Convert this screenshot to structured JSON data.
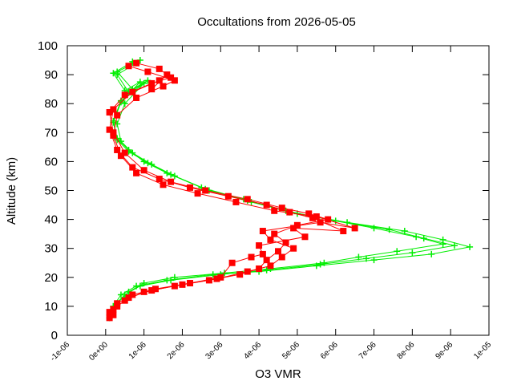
{
  "chart_data": {
    "type": "scatter",
    "title": "Occultations from 2026-05-05",
    "xlabel": "O3 VMR",
    "ylabel": "Altitude (km)",
    "xlim": [
      -1e-06,
      1e-05
    ],
    "ylim": [
      0,
      100
    ],
    "xticks": [
      "-1e-06",
      "0e+00",
      "1e-06",
      "2e-06",
      "3e-06",
      "4e-06",
      "5e-06",
      "6e-06",
      "7e-06",
      "8e-06",
      "9e-06",
      "1e-05"
    ],
    "yticks": [
      "0",
      "10",
      "20",
      "30",
      "40",
      "50",
      "60",
      "70",
      "80",
      "90",
      "100"
    ],
    "grid": false,
    "series": [
      {
        "color": "#00ee00",
        "marker": "plus",
        "profiles": [
          {
            "x": [
              1e-07,
              2e-07,
              4e-07,
              8e-07,
              1.6e-06,
              2.8e-06,
              4e-06,
              5.5e-06,
              7e-06,
              8.5e-06,
              9.5e-06,
              8.8e-06,
              7.8e-06,
              6.3e-06,
              5e-06,
              3.8e-06,
              2.7e-06,
              1.8e-06,
              1.2e-06,
              7e-07,
              4e-07,
              3e-07,
              5e-07,
              1e-06,
              6e-07,
              3e-07,
              8e-07
            ],
            "y": [
              6,
              10,
              14,
              17,
              19,
              21,
              22,
              24,
              26,
              28,
              30.5,
              33,
              36,
              39,
              42,
              46,
              50,
              55,
              59,
              63,
              67,
              73,
              80,
              87,
              84,
              90,
              94
            ]
          },
          {
            "x": [
              1e-07,
              2e-07,
              5e-07,
              9e-07,
              1.7e-06,
              3e-06,
              4.2e-06,
              5.6e-06,
              6.8e-06,
              8e-06,
              9.1e-06,
              8.3e-06,
              7.4e-06,
              6e-06,
              4.8e-06,
              3.7e-06,
              2.6e-06,
              1.7e-06,
              1.1e-06,
              6e-07,
              3e-07,
              2e-07,
              4e-07,
              9e-07,
              5e-07,
              2e-07,
              7e-07
            ],
            "y": [
              6,
              10,
              14,
              17,
              19,
              21,
              22.5,
              24.5,
              26.5,
              28.5,
              31,
              33.5,
              36.5,
              39.5,
              42.5,
              46.5,
              50.5,
              55.5,
              59.5,
              63.5,
              67.5,
              73.5,
              80.5,
              87.5,
              84.5,
              90.5,
              94.5
            ]
          },
          {
            "x": [
              1e-07,
              3e-07,
              6e-07,
              1e-06,
              1.8e-06,
              3.1e-06,
              4.3e-06,
              5.7e-06,
              6.6e-06,
              7.6e-06,
              8.8e-06,
              8.1e-06,
              7e-06,
              5.8e-06,
              4.7e-06,
              3.6e-06,
              2.5e-06,
              1.6e-06,
              1e-06,
              6e-07,
              3e-07,
              2e-07,
              4e-07,
              1.1e-06,
              7e-07,
              3e-07,
              9e-07
            ],
            "y": [
              7,
              11,
              15,
              18,
              20,
              21.5,
              23,
              25,
              27,
              29,
              31.5,
              34,
              37,
              40,
              43,
              47,
              51,
              56,
              60,
              64,
              68,
              74,
              81,
              88,
              85,
              91,
              95
            ]
          }
        ]
      },
      {
        "color": "#ff0000",
        "marker": "square",
        "profiles": [
          {
            "x": [
              1e-07,
              2e-07,
              5e-07,
              1e-06,
              1.8e-06,
              2.7e-06,
              3.5e-06,
              4e-06,
              4.2e-06,
              4.5e-06,
              4.7e-06,
              4.4e-06,
              5e-06,
              5.8e-06,
              5.3e-06,
              4.6e-06,
              3.7e-06,
              2.6e-06,
              1.7e-06,
              1e-06,
              5e-07,
              2e-07,
              1e-07,
              5e-07,
              1.2e-06,
              1.7e-06,
              1.4e-06,
              8e-07
            ],
            "y": [
              6,
              9,
              12,
              15,
              17,
              19,
              21,
              23,
              26,
              29,
              32,
              35,
              38,
              40,
              42,
              44,
              47,
              50,
              53,
              57,
              63,
              70,
              77,
              83,
              87,
              89,
              92,
              94
            ]
          },
          {
            "x": [
              2e-07,
              3e-07,
              6e-07,
              1.2e-06,
              2e-06,
              2.9e-06,
              3.7e-06,
              4.3e-06,
              4.6e-06,
              4.9e-06,
              4.3e-06,
              4.1e-06,
              5.6e-06,
              6.5e-06,
              5.5e-06,
              4.4e-06,
              3.4e-06,
              2.4e-06,
              1.5e-06,
              8e-07,
              4e-07,
              2e-07,
              3e-07,
              8e-07,
              1.5e-06,
              1.8e-06,
              1.1e-06,
              6e-07
            ],
            "y": [
              7,
              10,
              13,
              15.5,
              17.5,
              19.5,
              22,
              24,
              27,
              30,
              33,
              36,
              39,
              37,
              41,
              43,
              46,
              49,
              52,
              56,
              62,
              69,
              76,
              82,
              86,
              88,
              91,
              93
            ]
          },
          {
            "x": [
              1e-07,
              3e-07,
              7e-07,
              1.3e-06,
              2.2e-06,
              3e-06,
              3.3e-06,
              3.8e-06,
              4.1e-06,
              4e-06,
              5.2e-06,
              4.9e-06,
              6.2e-06,
              5.4e-06,
              4.8e-06,
              4.2e-06,
              3.2e-06,
              2.2e-06,
              1.4e-06,
              7e-07,
              3e-07,
              1e-07,
              2e-07,
              7e-07,
              1.4e-06,
              1.6e-06,
              1.2e-06
            ],
            "y": [
              8,
              11,
              14,
              16,
              18,
              20,
              25,
              27,
              28,
              31,
              34,
              37,
              36,
              40.5,
              42.5,
              45,
              48,
              51,
              54,
              58,
              64,
              71,
              78,
              84,
              88,
              90,
              85
            ]
          }
        ]
      }
    ]
  }
}
